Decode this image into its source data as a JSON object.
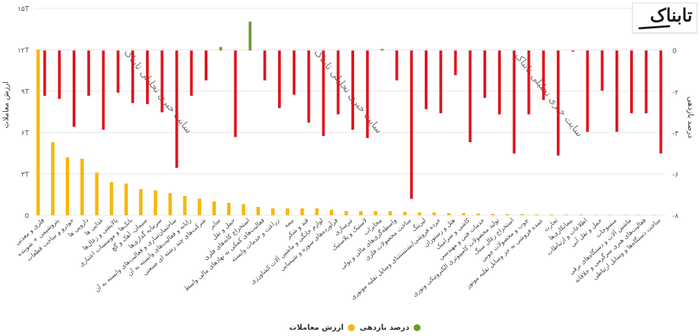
{
  "logo": {
    "text": "تابناک"
  },
  "colors": {
    "volume": "#f5b80f",
    "return_pos": "#6c9a2f",
    "return_neg": "#e0141e",
    "grid": "#e6e6e6",
    "text": "#555555"
  },
  "legend": {
    "volume_label": "ارزش معاملات",
    "return_label": "درصد بازدهی"
  },
  "chart_data": {
    "type": "bar",
    "title": "",
    "watermark": "سایت خبری تحلیلی تابناک",
    "y_left": {
      "label": "ارزش معاملات",
      "ticks": [
        "0",
        "۳T",
        "۶T",
        "۹T",
        "۱۲T",
        "۱۵T"
      ],
      "range": [
        0,
        15
      ]
    },
    "y_right": {
      "label": "درصد بازدهی",
      "ticks": [
        "-۸",
        "-۶",
        "-۴",
        "-۲",
        "0"
      ],
      "range": [
        -8,
        2.05
      ]
    },
    "categories": [
      "فلزی و معدنی",
      "پتروشیمی + شوینده",
      "خودرو و ساخت قطعات",
      "دارویی ها",
      "غذایی ها",
      "پالایشی و زغال‌ها",
      "بانک‌ها و موسسات اعتباری",
      "سیمان، آهک و گچ",
      "سرمایه گذاری‌ها",
      "ساختمان‌سازی و فعالیت‌های وابسته به آن",
      "رایانه و فعالیت‌های وابسته به آن",
      "شرکت‌های چند رشته ای صنعتی",
      "سایر",
      "حمل و نقل",
      "استخراج کانه‌های فلزی",
      "فعالیت‌های کمکی به نهادهای مالی واسط",
      "زراعت و خدمات وابسته",
      "بیمه",
      "قند و شکر",
      "لوازم خانگی و ماشین آلات کشاورزی",
      "فرآورده‌های سوزه و شیمیایی",
      "تیرسازی",
      "لاستیک و پلاستیک",
      "مخابرات",
      "واسطه‌گری‌های مالی و پولی",
      "ساخت محصولات فلزی",
      "لیزینگ",
      "خرده فروشی/بشتستثنای وسایل نقلیه موتوری",
      "هتل و رستوران",
      "کاشی و سرامیک",
      "خدمات فنی و مهندسی",
      "تولید محصولات کامپیوتری الکترونیکی ونوری",
      "استخراج زغال سنگ",
      "چوب و محصولات چوبی",
      "عمده فروشی به جز وسایل نقلیه موتور",
      "تجارت",
      "بیمانکاری‌ها",
      "اطلاعات و ارتباطات",
      "حمل و نقل آبی",
      "مبسوجات",
      "ماشین آلات و دستگاه‌های برقی",
      "فعالیت‌های هنری سرگرمی و خلاقانه",
      "ساخت دستگاه‌ها و وسایل ارتباطی"
    ],
    "series": [
      {
        "name": "ارزش معاملات",
        "axis": "left",
        "type": "bar",
        "values": [
          12.0,
          5.3,
          4.2,
          4.1,
          3.1,
          2.4,
          2.3,
          1.9,
          1.8,
          1.6,
          1.4,
          1.2,
          1.0,
          0.9,
          0.8,
          0.6,
          0.5,
          0.5,
          0.5,
          0.5,
          0.4,
          0.3,
          0.3,
          0.3,
          0.3,
          0.25,
          0.2,
          0.2,
          0.15,
          0.15,
          0.12,
          0.1,
          0.08,
          0.08,
          0.06,
          0.05,
          0.04,
          0.04,
          0.03,
          0.03,
          0.02,
          0.02,
          0.01
        ]
      },
      {
        "name": "درصد بازدهی",
        "axis": "right",
        "type": "bar",
        "values": [
          -2.2,
          -2.35,
          -3.7,
          -2.2,
          -3.85,
          -2.05,
          -2.55,
          -2.6,
          -3.0,
          -5.7,
          -2.2,
          -1.45,
          0.17,
          -4.2,
          1.4,
          -1.45,
          -2.8,
          -2.15,
          -3.5,
          -4.15,
          -3.1,
          -3.85,
          -4.25,
          0.08,
          -1.45,
          -7.2,
          -2.85,
          -3.05,
          -1.2,
          -4.45,
          -2.3,
          -3.1,
          -5.0,
          -3.1,
          -2.4,
          -5.1,
          -0.05,
          -3.95,
          -1.95,
          -3.95,
          -3.05,
          -3.05,
          -5.0
        ]
      }
    ]
  }
}
